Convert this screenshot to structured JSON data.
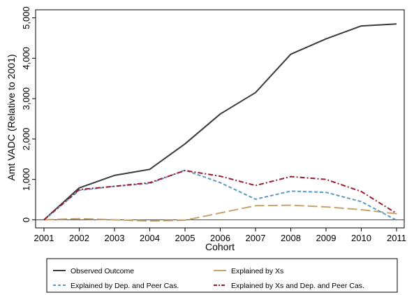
{
  "chart_data": {
    "type": "line",
    "title": "",
    "xlabel": "Cohort",
    "ylabel": "Amt VADC (Relative to 2001)",
    "x": [
      2001,
      2002,
      2003,
      2004,
      2005,
      2006,
      2007,
      2008,
      2009,
      2010,
      2011
    ],
    "xlim": [
      2001,
      2011
    ],
    "ylim": [
      -200,
      5200
    ],
    "y_ticks": [
      0,
      1000,
      2000,
      3000,
      4000,
      5000
    ],
    "x_tick_labels": [
      "2001",
      "2002",
      "2003",
      "2004",
      "2005",
      "2006",
      "2007",
      "2008",
      "2009",
      "2010",
      "2011"
    ],
    "y_tick_labels": [
      "0",
      "1,000",
      "2,000",
      "3,000",
      "4,000",
      "5,000"
    ],
    "grid": false,
    "zero_line": true,
    "legend_position": "bottom",
    "series": [
      {
        "name": "Observed Outcome",
        "color": "#3b3b3b",
        "style": "solid",
        "values": [
          0,
          790,
          1100,
          1250,
          1880,
          2620,
          3150,
          4100,
          4480,
          4800,
          4850
        ]
      },
      {
        "name": "Explained by Xs",
        "color": "#c9a26b",
        "style": "longdash",
        "values": [
          0,
          30,
          0,
          -30,
          -10,
          170,
          350,
          360,
          320,
          250,
          150
        ]
      },
      {
        "name": "Explained by Dep. and Peer Cas.",
        "color": "#5b9bc8",
        "style": "dash",
        "values": [
          0,
          730,
          830,
          900,
          1230,
          920,
          510,
          710,
          680,
          450,
          -10
        ]
      },
      {
        "name": "Explained by Xs and Dep. and Peer Cas.",
        "color": "#9b1b30",
        "style": "dashdot",
        "values": [
          0,
          750,
          830,
          920,
          1220,
          1080,
          850,
          1070,
          1000,
          700,
          160
        ]
      }
    ]
  }
}
